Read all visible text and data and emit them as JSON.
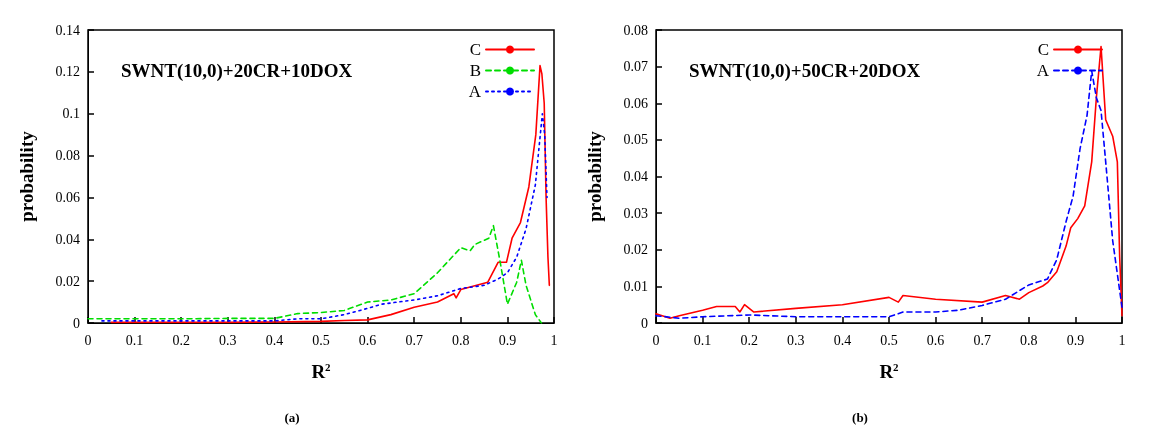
{
  "chart_data": [
    {
      "type": "line",
      "title": "SWNT(10,0)+20CR+10DOX",
      "xlabel": "R$^{2}$",
      "ylabel": "probability",
      "annotations": [
        "(a)"
      ],
      "xlim": [
        0,
        1
      ],
      "ylim": [
        0,
        0.14
      ],
      "xticks": [
        0,
        0.1,
        0.2,
        0.3,
        0.4,
        0.5,
        0.6,
        0.7,
        0.8,
        0.9,
        1
      ],
      "yticks": [
        0,
        0.02,
        0.04,
        0.06,
        0.08,
        0.1,
        0.12,
        0.14
      ],
      "grid": false,
      "legend": "top right",
      "marker": "none",
      "series": [
        {
          "name": "C",
          "color": "#ff0000",
          "line_style": "solid",
          "x": [
            0.05,
            0.1,
            0.2,
            0.3,
            0.4,
            0.5,
            0.55,
            0.6,
            0.65,
            0.7,
            0.75,
            0.785,
            0.79,
            0.8,
            0.858,
            0.88,
            0.898,
            0.91,
            0.928,
            0.946,
            0.961,
            0.97,
            0.974,
            0.979,
            0.983,
            0.987,
            0.99
          ],
          "values": [
            0.0003,
            0.0003,
            0.0003,
            0.0003,
            0.0005,
            0.0008,
            0.0012,
            0.0015,
            0.004,
            0.0075,
            0.01,
            0.014,
            0.012,
            0.016,
            0.0195,
            0.029,
            0.029,
            0.0405,
            0.048,
            0.065,
            0.09,
            0.123,
            0.119,
            0.105,
            0.06,
            0.0315,
            0.018
          ]
        },
        {
          "name": "B",
          "color": "#00dd00",
          "line_style": "dashed",
          "x": [
            0,
            0.1,
            0.2,
            0.3,
            0.4,
            0.45,
            0.5,
            0.55,
            0.6,
            0.65,
            0.7,
            0.75,
            0.8,
            0.82,
            0.83,
            0.86,
            0.87,
            0.885,
            0.9,
            0.92,
            0.93,
            0.94,
            0.96,
            0.973
          ],
          "values": [
            0.002,
            0.002,
            0.002,
            0.0022,
            0.0022,
            0.0045,
            0.005,
            0.006,
            0.01,
            0.011,
            0.014,
            0.024,
            0.036,
            0.0345,
            0.0375,
            0.0405,
            0.0465,
            0.0285,
            0.009,
            0.0195,
            0.03,
            0.018,
            0.004,
            0
          ]
        },
        {
          "name": "A",
          "color": "#0000ff",
          "line_style": "dotted",
          "x": [
            0.03,
            0.1,
            0.2,
            0.3,
            0.4,
            0.45,
            0.5,
            0.55,
            0.6,
            0.63,
            0.7,
            0.75,
            0.8,
            0.85,
            0.88,
            0.9,
            0.92,
            0.94,
            0.96,
            0.975,
            0.98,
            0.985
          ],
          "values": [
            0.001,
            0.001,
            0.001,
            0.001,
            0.001,
            0.002,
            0.002,
            0.004,
            0.007,
            0.009,
            0.011,
            0.013,
            0.0165,
            0.018,
            0.021,
            0.024,
            0.0315,
            0.045,
            0.066,
            0.1,
            0.09,
            0.06
          ]
        }
      ]
    },
    {
      "type": "line",
      "title": "SWNT(10,0)+50CR+20DOX",
      "xlabel": "R$^{2}$",
      "ylabel": "probability",
      "annotations": [
        "(b)"
      ],
      "xlim": [
        0,
        1
      ],
      "ylim": [
        0,
        0.08
      ],
      "xticks": [
        0,
        0.1,
        0.2,
        0.3,
        0.4,
        0.5,
        0.6,
        0.7,
        0.8,
        0.9,
        1
      ],
      "yticks": [
        0,
        0.01,
        0.02,
        0.03,
        0.04,
        0.05,
        0.06,
        0.07,
        0.08
      ],
      "grid": false,
      "legend": "top right",
      "marker": "none",
      "series": [
        {
          "name": "C",
          "color": "#ff0000",
          "line_style": "solid",
          "x": [
            0,
            0.03,
            0.05,
            0.1,
            0.13,
            0.17,
            0.18,
            0.19,
            0.21,
            0.3,
            0.4,
            0.5,
            0.52,
            0.53,
            0.6,
            0.7,
            0.75,
            0.78,
            0.8,
            0.83,
            0.84,
            0.86,
            0.88,
            0.89,
            0.905,
            0.92,
            0.935,
            0.945,
            0.955,
            0.965,
            0.98,
            0.99,
            0.995,
            1
          ],
          "values": [
            0.0025,
            0.0013,
            0.002,
            0.0035,
            0.0045,
            0.0045,
            0.003,
            0.005,
            0.003,
            0.004,
            0.005,
            0.007,
            0.0057,
            0.0075,
            0.0065,
            0.0057,
            0.0075,
            0.0065,
            0.0083,
            0.0101,
            0.011,
            0.014,
            0.021,
            0.026,
            0.0285,
            0.032,
            0.044,
            0.0615,
            0.0755,
            0.0555,
            0.051,
            0.044,
            0.018,
            0.002
          ]
        },
        {
          "name": "A",
          "color": "#0000ff",
          "line_style": "dashed",
          "x": [
            0,
            0.05,
            0.1,
            0.2,
            0.3,
            0.4,
            0.5,
            0.53,
            0.6,
            0.65,
            0.7,
            0.75,
            0.8,
            0.84,
            0.86,
            0.88,
            0.895,
            0.91,
            0.925,
            0.935,
            0.945,
            0.955,
            0.965,
            0.98,
            1
          ],
          "values": [
            0.002,
            0.0013,
            0.0017,
            0.0022,
            0.0017,
            0.0017,
            0.0017,
            0.003,
            0.003,
            0.0035,
            0.0048,
            0.0065,
            0.0104,
            0.012,
            0.0173,
            0.0277,
            0.0346,
            0.0476,
            0.0567,
            0.0688,
            0.0615,
            0.058,
            0.044,
            0.0225,
            0.0043
          ]
        }
      ]
    }
  ]
}
